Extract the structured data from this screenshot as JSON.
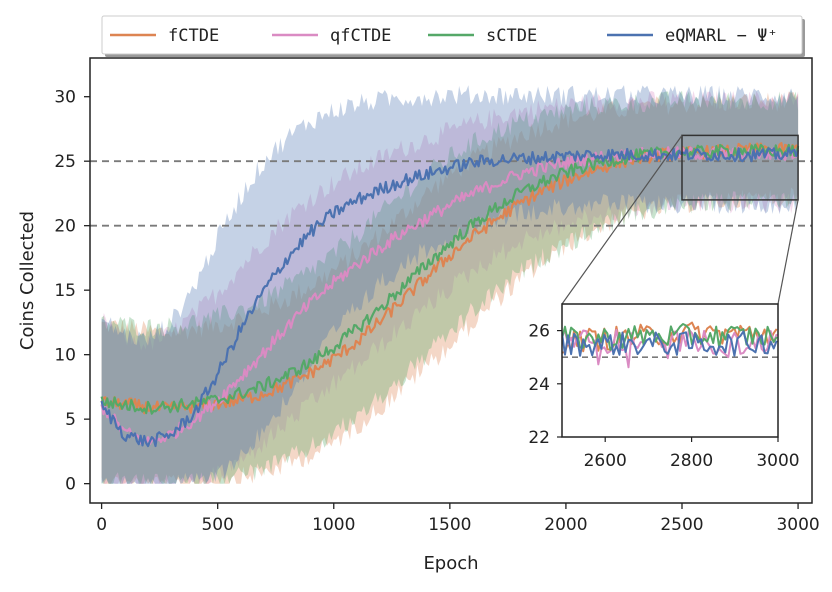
{
  "chart_data": {
    "type": "line",
    "xlabel": "Epoch",
    "ylabel": "Coins Collected",
    "xlim": [
      -50,
      3060
    ],
    "ylim": [
      -1.5,
      33
    ],
    "xticks": [
      0,
      500,
      1000,
      1500,
      2000,
      2500,
      3000
    ],
    "yticks": [
      0,
      5,
      10,
      15,
      20,
      25,
      30
    ],
    "reference_lines": [
      25,
      20
    ],
    "legend_position": "top",
    "series": [
      {
        "name": "fCTDE",
        "color": "#dd8452",
        "x": [
          0,
          100,
          200,
          300,
          400,
          500,
          600,
          700,
          800,
          900,
          1000,
          1100,
          1200,
          1300,
          1400,
          1500,
          1600,
          1700,
          1800,
          1900,
          2000,
          2100,
          2200,
          2300,
          2400,
          2500,
          2600,
          2700,
          2800,
          2900,
          3000
        ],
        "mean": [
          6.3,
          6.2,
          5.9,
          5.8,
          6.0,
          6.2,
          6.5,
          7.0,
          7.7,
          8.6,
          9.7,
          11.0,
          12.6,
          14.3,
          16.0,
          17.7,
          19.2,
          20.5,
          21.7,
          22.7,
          23.5,
          24.2,
          24.8,
          25.2,
          25.5,
          25.6,
          25.7,
          25.8,
          25.9,
          25.9,
          25.9
        ],
        "lower": [
          0.5,
          0.3,
          0.2,
          0.2,
          0.3,
          0.5,
          0.8,
          1.2,
          1.8,
          2.6,
          3.5,
          4.8,
          6.2,
          7.8,
          9.5,
          11.0,
          12.8,
          14.5,
          16.0,
          17.5,
          18.8,
          19.8,
          20.7,
          21.3,
          21.7,
          22.0,
          22.2,
          22.3,
          22.4,
          22.5,
          22.5
        ],
        "upper": [
          12.0,
          11.8,
          11.5,
          11.4,
          11.7,
          12.0,
          12.5,
          13.2,
          14.0,
          15.0,
          16.2,
          17.5,
          19.0,
          20.6,
          22.2,
          23.6,
          24.8,
          25.8,
          26.7,
          27.4,
          27.9,
          28.3,
          28.6,
          28.8,
          29.0,
          29.1,
          29.2,
          29.2,
          29.3,
          29.3,
          29.3
        ]
      },
      {
        "name": "qfCTDE",
        "color": "#da8bc3",
        "x": [
          0,
          100,
          200,
          300,
          400,
          500,
          600,
          700,
          800,
          900,
          1000,
          1100,
          1200,
          1300,
          1400,
          1500,
          1600,
          1700,
          1800,
          1900,
          2000,
          2100,
          2200,
          2300,
          2400,
          2500,
          2600,
          2700,
          2800,
          2900,
          3000
        ],
        "mean": [
          6.0,
          4.0,
          3.2,
          3.8,
          5.0,
          6.5,
          8.3,
          10.2,
          12.2,
          14.0,
          15.6,
          17.0,
          18.3,
          19.5,
          20.6,
          21.6,
          22.5,
          23.3,
          24.0,
          24.5,
          24.9,
          25.2,
          25.4,
          25.5,
          25.6,
          25.6,
          25.6,
          25.6,
          25.6,
          25.5,
          25.6
        ],
        "lower": [
          0.3,
          0.1,
          0.0,
          0.1,
          0.3,
          1.0,
          2.0,
          3.5,
          5.0,
          6.5,
          8.0,
          9.5,
          11.0,
          12.5,
          14.0,
          15.5,
          16.8,
          18.0,
          19.0,
          19.8,
          20.4,
          20.9,
          21.3,
          21.6,
          21.8,
          22.0,
          22.0,
          22.0,
          22.0,
          22.0,
          22.0
        ],
        "upper": [
          12.3,
          11.0,
          10.5,
          11.3,
          12.8,
          14.5,
          16.5,
          18.5,
          20.3,
          21.8,
          23.0,
          24.0,
          24.9,
          25.7,
          26.4,
          27.0,
          27.6,
          28.1,
          28.5,
          28.8,
          29.0,
          29.2,
          29.3,
          29.3,
          29.4,
          29.4,
          29.4,
          29.4,
          29.4,
          29.4,
          29.4
        ]
      },
      {
        "name": "sCTDE",
        "color": "#55a868",
        "x": [
          0,
          100,
          200,
          300,
          400,
          500,
          600,
          700,
          800,
          900,
          1000,
          1100,
          1200,
          1300,
          1400,
          1500,
          1600,
          1700,
          1800,
          1900,
          2000,
          2100,
          2200,
          2300,
          2400,
          2500,
          2600,
          2700,
          2800,
          2900,
          3000
        ],
        "mean": [
          6.4,
          6.1,
          5.9,
          6.0,
          6.2,
          6.5,
          7.0,
          7.6,
          8.4,
          9.4,
          10.6,
          12.0,
          13.6,
          15.3,
          17.0,
          18.6,
          20.1,
          21.4,
          22.5,
          23.4,
          24.1,
          24.7,
          25.1,
          25.4,
          25.6,
          25.7,
          25.7,
          25.8,
          25.8,
          25.8,
          25.8
        ],
        "lower": [
          0.6,
          0.4,
          0.3,
          0.3,
          0.4,
          0.6,
          1.0,
          1.5,
          2.2,
          3.1,
          4.2,
          5.5,
          7.0,
          8.6,
          10.3,
          12.0,
          13.7,
          15.2,
          16.6,
          17.8,
          18.9,
          19.8,
          20.6,
          21.2,
          21.6,
          21.9,
          22.1,
          22.2,
          22.3,
          22.4,
          22.4
        ],
        "upper": [
          12.2,
          12.0,
          11.8,
          11.9,
          12.2,
          12.6,
          13.2,
          14.0,
          15.0,
          16.2,
          17.5,
          19.0,
          20.6,
          22.2,
          23.7,
          25.0,
          26.1,
          27.0,
          27.7,
          28.2,
          28.6,
          28.9,
          29.1,
          29.2,
          29.3,
          29.4,
          29.4,
          29.4,
          29.4,
          29.4,
          29.4
        ]
      },
      {
        "name": "eQMARL − Ψ⁺",
        "color": "#4c72b0",
        "x": [
          0,
          100,
          200,
          300,
          400,
          500,
          600,
          700,
          800,
          900,
          1000,
          1100,
          1200,
          1300,
          1400,
          1500,
          1600,
          1700,
          1800,
          1900,
          2000,
          2100,
          2200,
          2300,
          2400,
          2500,
          2600,
          2700,
          2800,
          2900,
          3000
        ],
        "mean": [
          6.0,
          3.8,
          3.2,
          3.8,
          5.5,
          8.5,
          12.0,
          15.0,
          17.5,
          19.5,
          21.0,
          22.0,
          22.8,
          23.5,
          24.0,
          24.5,
          24.9,
          25.1,
          25.2,
          25.3,
          25.4,
          25.5,
          25.5,
          25.5,
          25.5,
          25.5,
          25.5,
          25.5,
          25.5,
          25.5,
          25.6
        ],
        "lower": [
          0.5,
          0.1,
          0.0,
          0.2,
          0.5,
          1.0,
          2.5,
          4.5,
          7.0,
          9.5,
          12.0,
          14.0,
          15.8,
          17.3,
          18.5,
          19.5,
          20.3,
          20.9,
          21.3,
          21.6,
          21.8,
          22.0,
          22.0,
          22.0,
          22.0,
          22.0,
          22.0,
          22.0,
          22.0,
          22.0,
          22.0
        ],
        "upper": [
          12.4,
          11.2,
          10.8,
          12.2,
          15.0,
          18.7,
          22.0,
          24.7,
          26.5,
          27.8,
          28.6,
          29.1,
          29.4,
          29.6,
          29.7,
          29.8,
          29.8,
          29.8,
          29.8,
          29.8,
          29.8,
          29.8,
          29.8,
          29.8,
          29.8,
          29.8,
          29.8,
          29.8,
          29.8,
          29.8,
          29.8
        ]
      }
    ],
    "inset": {
      "xlim": [
        2500,
        3000
      ],
      "ylim": [
        22,
        27
      ],
      "xticks": [
        2600,
        2800,
        3000
      ],
      "yticks": [
        22,
        24,
        26
      ],
      "reference_lines": [
        25
      ],
      "zoom_region": {
        "x": [
          2500,
          3000
        ],
        "y": [
          22,
          27
        ]
      }
    }
  }
}
